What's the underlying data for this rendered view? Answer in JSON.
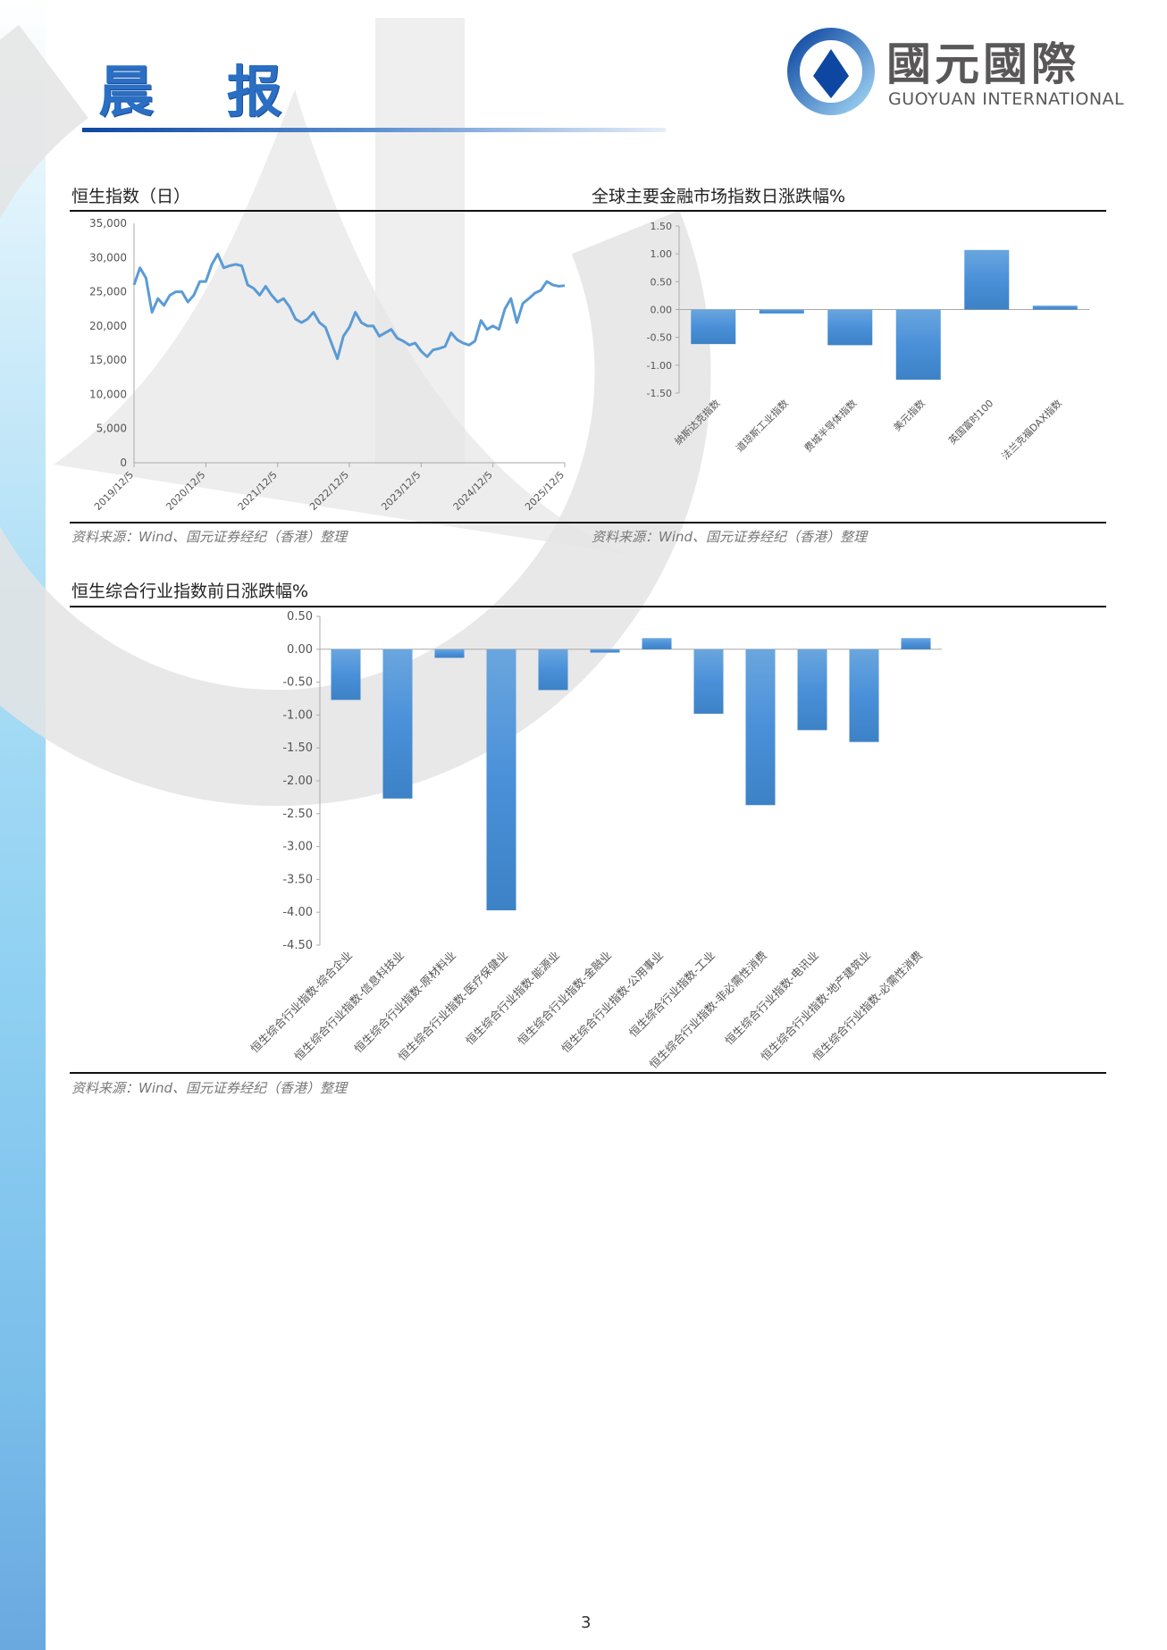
{
  "header": {
    "title": "晨 报"
  },
  "logo": {
    "cn": "國元國際",
    "en": "GUOYUAN INTERNATIONAL"
  },
  "colors": {
    "bar": "#4a90d9",
    "line": "#5b9bd5",
    "title": "#2a6fc4"
  },
  "sources": {
    "hsi": "资料来源：Wind、国元证券经纪（香港）整理",
    "global": "资料来源：Wind、国元证券经纪（香港）整理",
    "industry": "资料来源：Wind、国元证券经纪（香港）整理"
  },
  "page_number": "3",
  "chart_data": [
    {
      "type": "line",
      "title": "恒生指数（日）",
      "ylim": [
        0,
        35000
      ],
      "yticks": [
        "0",
        "5,000",
        "10,000",
        "15,000",
        "20,000",
        "25,000",
        "30,000",
        "35,000"
      ],
      "xticks": [
        "2019/12/5",
        "2020/12/5",
        "2021/12/5",
        "2022/12/5",
        "2023/12/5",
        "2024/12/5",
        "2025/12/5"
      ],
      "x_range": [
        "2019-12",
        "2025-12"
      ],
      "x": [
        "2019-12",
        "2020-01",
        "2020-02",
        "2020-03",
        "2020-04",
        "2020-05",
        "2020-06",
        "2020-07",
        "2020-08",
        "2020-09",
        "2020-10",
        "2020-11",
        "2020-12",
        "2021-01",
        "2021-02",
        "2021-03",
        "2021-04",
        "2021-05",
        "2021-06",
        "2021-07",
        "2021-08",
        "2021-09",
        "2021-10",
        "2021-11",
        "2021-12",
        "2022-01",
        "2022-02",
        "2022-03",
        "2022-04",
        "2022-05",
        "2022-06",
        "2022-07",
        "2022-08",
        "2022-09",
        "2022-10",
        "2022-11",
        "2022-12",
        "2023-01",
        "2023-02",
        "2023-03",
        "2023-04",
        "2023-05",
        "2023-06",
        "2023-07",
        "2023-08",
        "2023-09",
        "2023-10",
        "2023-11",
        "2023-12",
        "2024-01",
        "2024-02",
        "2024-03",
        "2024-04",
        "2024-05",
        "2024-06",
        "2024-07",
        "2024-08",
        "2024-09",
        "2024-10",
        "2024-11",
        "2024-12",
        "2025-01",
        "2025-02",
        "2025-03",
        "2025-04",
        "2025-05",
        "2025-06",
        "2025-07",
        "2025-08",
        "2025-09",
        "2025-10",
        "2025-11",
        "2025-12"
      ],
      "values": [
        26000,
        28500,
        27000,
        22000,
        24000,
        23000,
        24500,
        25000,
        25000,
        23500,
        24500,
        26500,
        26500,
        29000,
        30500,
        28500,
        28800,
        29000,
        28800,
        26000,
        25500,
        24500,
        25800,
        24500,
        23500,
        24000,
        22800,
        21000,
        20500,
        21000,
        22000,
        20500,
        19800,
        17500,
        15200,
        18500,
        19800,
        22000,
        20500,
        20000,
        20000,
        18500,
        19000,
        19500,
        18200,
        17800,
        17200,
        17500,
        16300,
        15500,
        16500,
        16700,
        17000,
        19000,
        18000,
        17500,
        17200,
        17800,
        20800,
        19500,
        20000,
        19500,
        22500,
        24000,
        20500,
        23300,
        24000,
        24800,
        25200,
        26500,
        26000,
        25800,
        25900
      ]
    },
    {
      "type": "bar",
      "title": "全球主要金融市场指数日涨跌幅%",
      "ylim": [
        -1.5,
        1.5
      ],
      "yticks": [
        "-1.50",
        "-1.00",
        "-0.50",
        "0.00",
        "0.50",
        "1.00",
        "1.50"
      ],
      "categories": [
        "纳斯达克指数",
        "道琼斯工业指数",
        "费城半导体指数",
        "美元指数",
        "英国富时100",
        "法兰克福DAX指数"
      ],
      "values": [
        -0.62,
        -0.07,
        -0.64,
        -1.26,
        1.07,
        0.07
      ]
    },
    {
      "type": "bar",
      "title": "恒生综合行业指数前日涨跌幅%",
      "ylim": [
        -4.5,
        0.5
      ],
      "yticks": [
        "-4.50",
        "-4.00",
        "-3.50",
        "-3.00",
        "-2.50",
        "-2.00",
        "-1.50",
        "-1.00",
        "-0.50",
        "0.00",
        "0.50"
      ],
      "categories": [
        "恒生综合行业指数-综合企业",
        "恒生综合行业指数-信息科技业",
        "恒生综合行业指数-原材料业",
        "恒生综合行业指数-医疗保健业",
        "恒生综合行业指数-能源业",
        "恒生综合行业指数-金融业",
        "恒生综合行业指数-公用事业",
        "恒生综合行业指数-工业",
        "恒生综合行业指数-非必需性消费",
        "恒生综合行业指数-电讯业",
        "恒生综合行业指数-地产建筑业",
        "恒生综合行业指数-必需性消费"
      ],
      "values": [
        -0.77,
        -2.27,
        -0.13,
        -3.97,
        -0.62,
        -0.05,
        0.17,
        -0.98,
        -2.37,
        -1.23,
        -1.41,
        0.17
      ]
    }
  ]
}
